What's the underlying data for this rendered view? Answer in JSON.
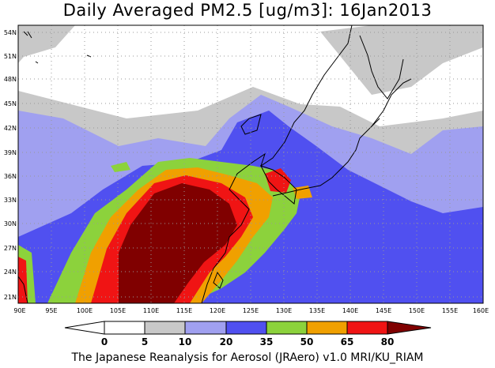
{
  "title": "Daily Averaged PM2.5 [ug/m3]: 16Jan2013",
  "credit": "The Japanese Reanalysis for Aerosol (JRAero) v1.0 MRI/KU_RIAM",
  "axes": {
    "lat_labels": [
      "21N",
      "24N",
      "27N",
      "30N",
      "33N",
      "36N",
      "39N",
      "42N",
      "45N",
      "48N",
      "51N",
      "54N"
    ],
    "lon_labels": [
      "90E",
      "95E",
      "100E",
      "105E",
      "110E",
      "115E",
      "120E",
      "125E",
      "130E",
      "135E",
      "140E",
      "145E",
      "150E",
      "155E",
      "160E"
    ]
  },
  "colorbar": {
    "levels": [
      "0",
      "5",
      "10",
      "20",
      "35",
      "50",
      "65",
      "80"
    ],
    "colors": [
      "#ffffff",
      "#c8c8c8",
      "#a0a0f0",
      "#5050f0",
      "#8cd23c",
      "#f0a000",
      "#f01414",
      "#800000"
    ]
  }
}
